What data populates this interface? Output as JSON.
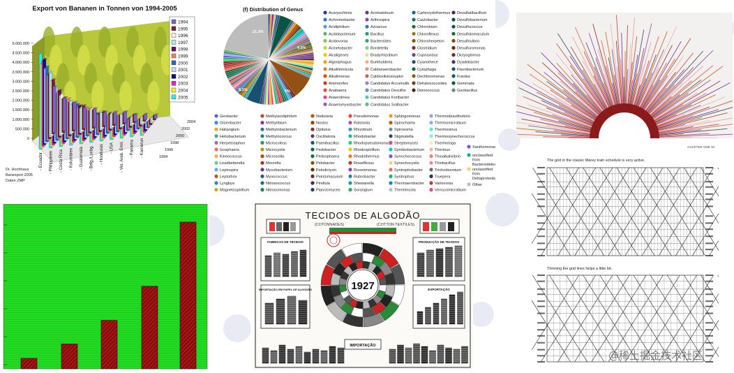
{
  "banana": {
    "title": "Export von Bananen in Tonnen von 1994-2005",
    "credit": [
      "Dr. Hochhaus",
      "Banexport 2005",
      "Daten ZMP"
    ],
    "legend": [
      {
        "label": "1994",
        "color": "#7b61c4"
      },
      {
        "label": "1995",
        "color": "#7a1e3e"
      },
      {
        "label": "1996",
        "color": "#f4f0c8"
      },
      {
        "label": "1997",
        "color": "#a8e8f0"
      },
      {
        "label": "1998",
        "color": "#5b1060"
      },
      {
        "label": "1999",
        "color": "#f08060"
      },
      {
        "label": "2000",
        "color": "#1e6ac8"
      },
      {
        "label": "2001",
        "color": "#c8d4f8"
      },
      {
        "label": "2002",
        "color": "#101078"
      },
      {
        "label": "2003",
        "color": "#e020e0"
      },
      {
        "label": "2004",
        "color": "#f0f020"
      },
      {
        "label": "2005",
        "color": "#30e8f8"
      }
    ],
    "y_ticks": [
      "5.000.000",
      "4.500.000",
      "4.000.000",
      "3.500.000",
      "3.000.000",
      "2.500.000",
      "2.000.000",
      "1.500.000",
      "1.000.000",
      "500.000",
      "0"
    ],
    "countries": [
      "Ecuador",
      "Philippinen",
      "Costa Rica",
      "Kolumbien",
      "Guatemala",
      "Belg./Luxbg.",
      "Honduras",
      "USA",
      "Ver. Arab. Emir.",
      "Panama",
      "Kamerun"
    ],
    "depth_labels": [
      "2004",
      "2002",
      "2000",
      "1998",
      "1996",
      "1994"
    ]
  },
  "genus": {
    "title": "(f) Distribution of Genus",
    "pie_labels": [
      "21.3%",
      "4.5%",
      "8.1%",
      "5%"
    ],
    "legend_top": [
      {
        "label": "Acaryochloris",
        "color": "#2b3a8f"
      },
      {
        "label": "Achromobacter",
        "color": "#3a6fbf"
      },
      {
        "label": "Acidiphilium",
        "color": "#4d9fd6"
      },
      {
        "label": "Acidobacterium",
        "color": "#5cb85c"
      },
      {
        "label": "Acidovorax",
        "color": "#8cc152"
      },
      {
        "label": "Acinetobacter",
        "color": "#c0d936"
      },
      {
        "label": "Alcaligenes",
        "color": "#f2c500"
      },
      {
        "label": "Algoriphagus",
        "color": "#f39c12"
      },
      {
        "label": "Alkalilimnicola",
        "color": "#e67e22"
      },
      {
        "label": "Alkalimonas",
        "color": "#d35400"
      },
      {
        "label": "Ammonifex",
        "color": "#c0392b"
      },
      {
        "label": "Anabaena",
        "color": "#e74c3c"
      },
      {
        "label": "Anaerolinea",
        "color": "#e84393"
      },
      {
        "label": "Anaeromyxobacter",
        "color": "#9b59b6"
      },
      {
        "label": "Aromatoleum",
        "color": "#6c3483"
      },
      {
        "label": "Arthrospira",
        "color": "#8e44ad"
      },
      {
        "label": "Azoarcus",
        "color": "#2980b9"
      },
      {
        "label": "Bacillus",
        "color": "#16a085"
      },
      {
        "label": "Bacteroides",
        "color": "#27ae60"
      },
      {
        "label": "Bordetella",
        "color": "#7dcea0"
      },
      {
        "label": "Bradyrhizobium",
        "color": "#f7dc6f"
      },
      {
        "label": "Burkholderia",
        "color": "#f0b27a"
      },
      {
        "label": "Caldanaerobacter",
        "color": "#e59866"
      },
      {
        "label": "Caldicellulosiruptor",
        "color": "#cd6155"
      },
      {
        "label": "Candidatus Accumulib",
        "color": "#af7ac5"
      },
      {
        "label": "Candidatus Desulfor",
        "color": "#5499c7"
      },
      {
        "label": "Candidatus Koribacter",
        "color": "#48c9b0"
      },
      {
        "label": "Candidatus Solibacter",
        "color": "#52be80"
      },
      {
        "label": "Carboxydothermus",
        "color": "#1f618d"
      },
      {
        "label": "Caulobacter",
        "color": "#117864"
      },
      {
        "label": "Chlorobium",
        "color": "#196f3d"
      },
      {
        "label": "Chloroflexus",
        "color": "#9a7d0a"
      },
      {
        "label": "Chloroherpeton",
        "color": "#935116"
      },
      {
        "label": "Clostridium",
        "color": "#922b21"
      },
      {
        "label": "Cupriavidus",
        "color": "#76448a"
      },
      {
        "label": "Cyanothece",
        "color": "#1a5276"
      },
      {
        "label": "Cytophaga",
        "color": "#0e6655"
      },
      {
        "label": "Dechloromonas",
        "color": "#7d6608"
      },
      {
        "label": "Dehalococcoides",
        "color": "#784212"
      },
      {
        "label": "Deinococcus",
        "color": "#641e16"
      },
      {
        "label": "Desulfatibacillum",
        "color": "#4a235a"
      },
      {
        "label": "Desulfobacterium",
        "color": "#154360"
      },
      {
        "label": "Desulfococcus",
        "color": "#0b5345"
      },
      {
        "label": "Desulfotomaculum",
        "color": "#186a3b"
      },
      {
        "label": "Desulfovibrio",
        "color": "#7e5109"
      },
      {
        "label": "Desulfuromonas",
        "color": "#6e2c00"
      },
      {
        "label": "Dictyoglomus",
        "color": "#78281f"
      },
      {
        "label": "Dyadobacter",
        "color": "#512e5f"
      },
      {
        "label": "Flavobacterium",
        "color": "#1b4f72"
      },
      {
        "label": "Frankia",
        "color": "#0e6251"
      },
      {
        "label": "Gemmata",
        "color": "#145a32"
      },
      {
        "label": "Geobacillus",
        "color": "#7b7d7d"
      }
    ],
    "legend_bottom": [
      {
        "label": "Geobacter",
        "color": "#5b6abf"
      },
      {
        "label": "Gloeobacter",
        "color": "#2d8fd5"
      },
      {
        "label": "Haliangium",
        "color": "#e8a838"
      },
      {
        "label": "Heliobacterium",
        "color": "#3cb371"
      },
      {
        "label": "Herpetosiphon",
        "color": "#a569bd"
      },
      {
        "label": "Isosphaera",
        "color": "#ec7063"
      },
      {
        "label": "Kineococcus",
        "color": "#f5b041"
      },
      {
        "label": "Leadbetterella",
        "color": "#58d68d"
      },
      {
        "label": "Leptospira",
        "color": "#5dade2"
      },
      {
        "label": "Leptothrix",
        "color": "#af601a"
      },
      {
        "label": "Lyngbya",
        "color": "#2e86c1"
      },
      {
        "label": "Magnetospirillum",
        "color": "#d4ac0d"
      },
      {
        "label": "Methylacidiphilum",
        "color": "#cb4335"
      },
      {
        "label": "Methylibium",
        "color": "#7d3c98"
      },
      {
        "label": "Methylobacterium",
        "color": "#2874a6"
      },
      {
        "label": "Methylococcus",
        "color": "#138d75"
      },
      {
        "label": "Microcoleus",
        "color": "#229954"
      },
      {
        "label": "Microcystis",
        "color": "#b7950b"
      },
      {
        "label": "Microscilla",
        "color": "#ba4a00"
      },
      {
        "label": "Moorella",
        "color": "#a93226"
      },
      {
        "label": "Mycobacterium",
        "color": "#6c3483"
      },
      {
        "label": "Myxococcus",
        "color": "#1f618d"
      },
      {
        "label": "Nitrosococcus",
        "color": "#117a65"
      },
      {
        "label": "Nitrosomonas",
        "color": "#1e8449"
      },
      {
        "label": "Nodularia",
        "color": "#9c640c"
      },
      {
        "label": "Nostoc",
        "color": "#a04000"
      },
      {
        "label": "Opitutus",
        "color": "#922b21"
      },
      {
        "label": "Oscillatoria",
        "color": "#633974"
      },
      {
        "label": "Paenibacillus",
        "color": "#1a5276"
      },
      {
        "label": "Pedobacter",
        "color": "#0e6655"
      },
      {
        "label": "Pedosphaera",
        "color": "#196f3d"
      },
      {
        "label": "Pelobacter",
        "color": "#7e5109"
      },
      {
        "label": "Pelodictyon",
        "color": "#6e2c00"
      },
      {
        "label": "Pelotomaculum",
        "color": "#78281f"
      },
      {
        "label": "Pirellula",
        "color": "#4a235a"
      },
      {
        "label": "Planctomyces",
        "color": "#154360"
      },
      {
        "label": "Pseudomonas",
        "color": "#e74c3c"
      },
      {
        "label": "Ralstonia",
        "color": "#9b59b6"
      },
      {
        "label": "Rhizobium",
        "color": "#3498db"
      },
      {
        "label": "Rhodobacter",
        "color": "#1abc9c"
      },
      {
        "label": "Rhodopseudomonas",
        "color": "#2ecc71"
      },
      {
        "label": "Rhodospirillum",
        "color": "#f1c40f"
      },
      {
        "label": "Rhodothermus",
        "color": "#e67e22"
      },
      {
        "label": "Roseiflexus",
        "color": "#c0392b"
      },
      {
        "label": "Roseomonas",
        "color": "#8e44ad"
      },
      {
        "label": "Rubrobacter",
        "color": "#2980b9"
      },
      {
        "label": "Shewanella",
        "color": "#16a085"
      },
      {
        "label": "Sorangium",
        "color": "#27ae60"
      },
      {
        "label": "Sphingomonas",
        "color": "#f39c12"
      },
      {
        "label": "Spirochaeta",
        "color": "#d35400"
      },
      {
        "label": "Spirosoma",
        "color": "#7f8c8d"
      },
      {
        "label": "Stigmatella",
        "color": "#34495e"
      },
      {
        "label": "Streptomyces",
        "color": "#e84393"
      },
      {
        "label": "Symbiobacterium",
        "color": "#00cec9"
      },
      {
        "label": "Synechococcus",
        "color": "#6c5ce7"
      },
      {
        "label": "Synechocystis",
        "color": "#fdcb6e"
      },
      {
        "label": "Syntrophobacter",
        "color": "#e17055"
      },
      {
        "label": "Syntrophus",
        "color": "#00b894"
      },
      {
        "label": "Thermaerobacter",
        "color": "#0984e3"
      },
      {
        "label": "Thermincola",
        "color": "#b2bec3"
      },
      {
        "label": "Thermodesulfovibrio",
        "color": "#a29bfe"
      },
      {
        "label": "Thermomicrobium",
        "color": "#74b9ff"
      },
      {
        "label": "Thermosinus",
        "color": "#55efc4"
      },
      {
        "label": "Thermosynechococcus",
        "color": "#81ecec"
      },
      {
        "label": "Thermotoga",
        "color": "#ffeaa7"
      },
      {
        "label": "Thermus",
        "color": "#fab1a0"
      },
      {
        "label": "Thioalkalivibrio",
        "color": "#ff7675"
      },
      {
        "label": "Thiobacillus",
        "color": "#fd79a8"
      },
      {
        "label": "Trichodesmium",
        "color": "#636e72"
      },
      {
        "label": "Truepera",
        "color": "#2d3436"
      },
      {
        "label": "Variovorax",
        "color": "#d63031"
      },
      {
        "label": "Verrucomicrobium",
        "color": "#e84393"
      }
    ],
    "legend_extra": [
      {
        "label": "Xanthomonas",
        "color": "#6c5ce7"
      },
      {
        "label": "unclassified from Bacteroidetes",
        "color": "#00b894"
      },
      {
        "label": "unclassified from Deltaproteobacteria",
        "color": "#fdcb6e"
      },
      {
        "label": "Other",
        "color": "#bdbdbd"
      }
    ]
  },
  "train": {
    "header": "CHAPTER ONE 10",
    "caption_top": "The grid in the classic Marey train schedule is very active.",
    "caption_bottom": "Thinning the grid lines helps a little bit."
  },
  "poster": {
    "title": "TECIDOS DE ALGODÃO",
    "subtitle_left": "(COTONNADES)",
    "subtitle_right": "(COTTON TEXTILES)",
    "year": "1927",
    "box_left_title": "FABRICAS DE TECIDOS",
    "box_right_title": "PRODUCÇÃO DE TECIDOS",
    "box_lower_left_title": "IMPORTAÇÃO EM PAPEL DE ALGODÃO",
    "box_lower_right_title": "EXPORTAÇÃO",
    "bottom_label": "IMPORTAÇÃO"
  },
  "green_chart": {
    "type": "bar",
    "values": [
      8,
      19,
      37,
      63,
      112
    ]
  },
  "watermark": "@稀土掘金技术社区"
}
